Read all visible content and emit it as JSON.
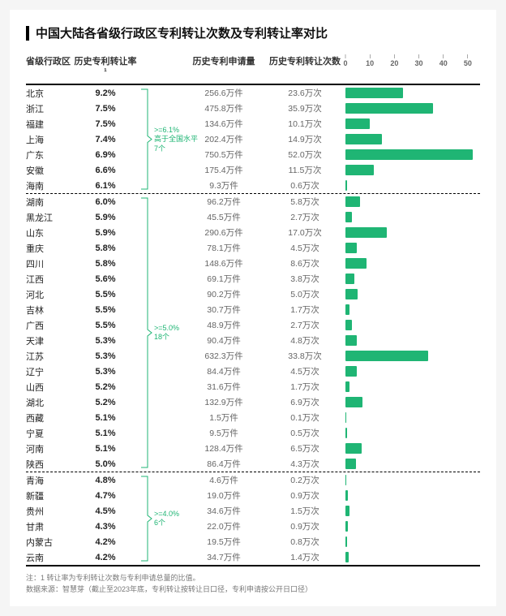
{
  "title": "中国大陆各省级行政区专利转让次数及专利转让率对比",
  "columns": {
    "region": "省级行政区",
    "rate": "历史专利转让率¹",
    "apply": "历史专利申请量",
    "count": "历史专利转让次数"
  },
  "chart": {
    "xmax": 55,
    "ticks": [
      0,
      10,
      20,
      30,
      40,
      50
    ],
    "bar_color": "#1fb574",
    "bracket_color": "#1fb574",
    "grid_color": "#dddddd",
    "axis_font_color": "#666666"
  },
  "groups": [
    {
      "bracket": {
        "label_line1": ">=6.1%",
        "label_line2": "高于全国水平",
        "label_line3": "7个"
      },
      "rows": [
        {
          "region": "北京",
          "rate": "9.2%",
          "apply": "256.6万件",
          "count": "23.6万次",
          "value": 23.6
        },
        {
          "region": "浙江",
          "rate": "7.5%",
          "apply": "475.8万件",
          "count": "35.9万次",
          "value": 35.9
        },
        {
          "region": "福建",
          "rate": "7.5%",
          "apply": "134.6万件",
          "count": "10.1万次",
          "value": 10.1
        },
        {
          "region": "上海",
          "rate": "7.4%",
          "apply": "202.4万件",
          "count": "14.9万次",
          "value": 14.9
        },
        {
          "region": "广东",
          "rate": "6.9%",
          "apply": "750.5万件",
          "count": "52.0万次",
          "value": 52.0
        },
        {
          "region": "安徽",
          "rate": "6.6%",
          "apply": "175.4万件",
          "count": "11.5万次",
          "value": 11.5
        },
        {
          "region": "海南",
          "rate": "6.1%",
          "apply": "9.3万件",
          "count": "0.6万次",
          "value": 0.6
        }
      ]
    },
    {
      "bracket": {
        "label_line1": ">=5.0%",
        "label_line2": "18个",
        "label_line3": ""
      },
      "rows": [
        {
          "region": "湖南",
          "rate": "6.0%",
          "apply": "96.2万件",
          "count": "5.8万次",
          "value": 5.8
        },
        {
          "region": "黑龙江",
          "rate": "5.9%",
          "apply": "45.5万件",
          "count": "2.7万次",
          "value": 2.7
        },
        {
          "region": "山东",
          "rate": "5.9%",
          "apply": "290.6万件",
          "count": "17.0万次",
          "value": 17.0
        },
        {
          "region": "重庆",
          "rate": "5.8%",
          "apply": "78.1万件",
          "count": "4.5万次",
          "value": 4.5
        },
        {
          "region": "四川",
          "rate": "5.8%",
          "apply": "148.6万件",
          "count": "8.6万次",
          "value": 8.6
        },
        {
          "region": "江西",
          "rate": "5.6%",
          "apply": "69.1万件",
          "count": "3.8万次",
          "value": 3.8
        },
        {
          "region": "河北",
          "rate": "5.5%",
          "apply": "90.2万件",
          "count": "5.0万次",
          "value": 5.0
        },
        {
          "region": "吉林",
          "rate": "5.5%",
          "apply": "30.7万件",
          "count": "1.7万次",
          "value": 1.7
        },
        {
          "region": "广西",
          "rate": "5.5%",
          "apply": "48.9万件",
          "count": "2.7万次",
          "value": 2.7
        },
        {
          "region": "天津",
          "rate": "5.3%",
          "apply": "90.4万件",
          "count": "4.8万次",
          "value": 4.8
        },
        {
          "region": "江苏",
          "rate": "5.3%",
          "apply": "632.3万件",
          "count": "33.8万次",
          "value": 33.8
        },
        {
          "region": "辽宁",
          "rate": "5.3%",
          "apply": "84.4万件",
          "count": "4.5万次",
          "value": 4.5
        },
        {
          "region": "山西",
          "rate": "5.2%",
          "apply": "31.6万件",
          "count": "1.7万次",
          "value": 1.7
        },
        {
          "region": "湖北",
          "rate": "5.2%",
          "apply": "132.9万件",
          "count": "6.9万次",
          "value": 6.9
        },
        {
          "region": "西藏",
          "rate": "5.1%",
          "apply": "1.5万件",
          "count": "0.1万次",
          "value": 0.1
        },
        {
          "region": "宁夏",
          "rate": "5.1%",
          "apply": "9.5万件",
          "count": "0.5万次",
          "value": 0.5
        },
        {
          "region": "河南",
          "rate": "5.1%",
          "apply": "128.4万件",
          "count": "6.5万次",
          "value": 6.5
        },
        {
          "region": "陕西",
          "rate": "5.0%",
          "apply": "86.4万件",
          "count": "4.3万次",
          "value": 4.3
        }
      ]
    },
    {
      "bracket": {
        "label_line1": ">=4.0%",
        "label_line2": "6个",
        "label_line3": ""
      },
      "rows": [
        {
          "region": "青海",
          "rate": "4.8%",
          "apply": "4.6万件",
          "count": "0.2万次",
          "value": 0.2
        },
        {
          "region": "新疆",
          "rate": "4.7%",
          "apply": "19.0万件",
          "count": "0.9万次",
          "value": 0.9
        },
        {
          "region": "贵州",
          "rate": "4.5%",
          "apply": "34.6万件",
          "count": "1.5万次",
          "value": 1.5
        },
        {
          "region": "甘肃",
          "rate": "4.3%",
          "apply": "22.0万件",
          "count": "0.9万次",
          "value": 0.9
        },
        {
          "region": "内蒙古",
          "rate": "4.2%",
          "apply": "19.5万件",
          "count": "0.8万次",
          "value": 0.8
        },
        {
          "region": "云南",
          "rate": "4.2%",
          "apply": "34.7万件",
          "count": "1.4万次",
          "value": 1.4
        }
      ]
    }
  ],
  "footnote": {
    "line1": "注：1 转让率为专利转让次数与专利申请总量的比值。",
    "line2": "数据来源：智慧芽（截止至2023年底，专利转让按转让日口径，专利申请按公开日口径）"
  }
}
